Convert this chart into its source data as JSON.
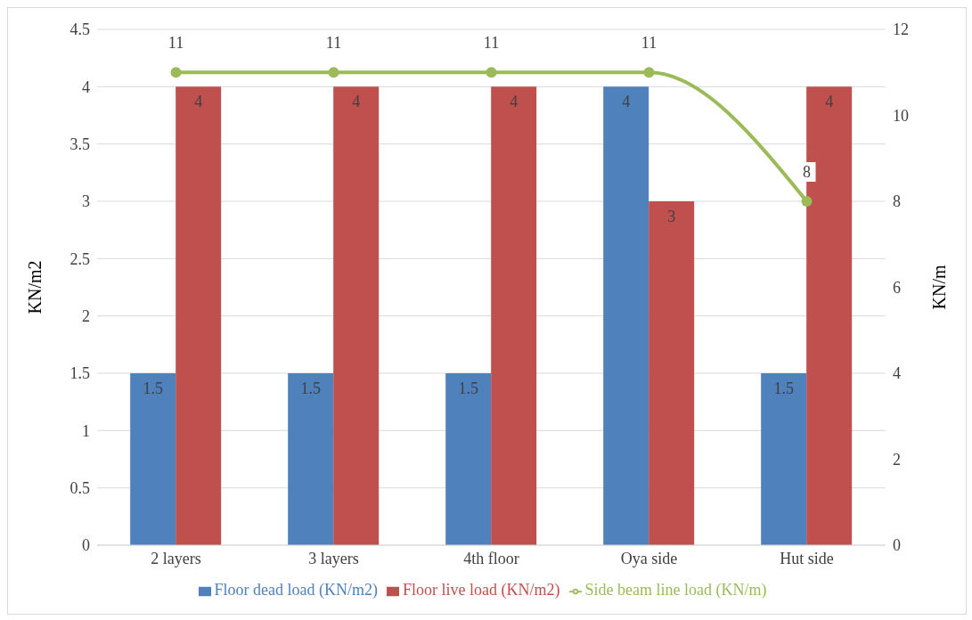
{
  "chart_data": {
    "type": "bar",
    "ylabel": "KN/m2",
    "y2label": "KN/m",
    "categories": [
      "2 layers",
      "3 layers",
      "4th floor",
      "Oya side",
      "Hut side"
    ],
    "series": [
      {
        "name": "Floor dead load (KN/m2)",
        "color": "#4f81bd",
        "values": [
          1.5,
          1.5,
          1.5,
          4,
          1.5
        ]
      },
      {
        "name": "Floor live load (KN/m2)",
        "color": "#c0504d",
        "values": [
          4,
          4,
          4,
          3,
          4
        ]
      },
      {
        "name": "Side beam line load (KN/m)",
        "type": "line",
        "axis": "y2",
        "color": "#9bbb59",
        "values": [
          11,
          11,
          11,
          11,
          8
        ]
      }
    ],
    "ylim": [
      0,
      4.5
    ],
    "yticks": [
      0,
      0.5,
      1,
      1.5,
      2,
      2.5,
      3,
      3.5,
      4,
      4.5
    ],
    "y2lim": [
      0,
      12
    ],
    "y2ticks": [
      0,
      2,
      4,
      6,
      8,
      10,
      12
    ],
    "data_labels": true,
    "grid": "y",
    "legend": "bottom",
    "marker": "circle"
  }
}
